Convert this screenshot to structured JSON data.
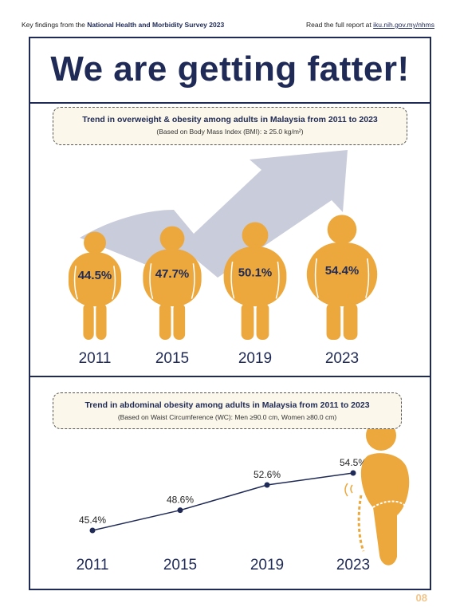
{
  "header": {
    "prefix": "Key findings from the",
    "survey_name": "National Health and Morbidity Survey 2023",
    "report_text": "Read the full report at",
    "report_link": "iku.nih.gov.my/nhms"
  },
  "title": "We are getting fatter!",
  "section1": {
    "heading": "Trend in overweight & obesity among adults in Malaysia from 2011 to 2023",
    "subheading": "(Based on Body Mass Index (BMI): ≥ 25.0 kg/m²)"
  },
  "section2": {
    "heading": "Trend in abdominal obesity among adults in Malaysia from 2011 to 2023",
    "subheading": "(Based on Waist Circumference (WC): Men ≥90.0 cm, Women ≥80.0 cm)"
  },
  "chart_data": [
    {
      "type": "bar",
      "categories": [
        "2011",
        "2015",
        "2019",
        "2023"
      ],
      "values": [
        44.5,
        47.7,
        50.1,
        54.4
      ],
      "labels": [
        "44.5%",
        "47.7%",
        "50.1%",
        "54.4%"
      ],
      "unit": "%"
    },
    {
      "type": "line",
      "x": [
        "2011",
        "2015",
        "2019",
        "2023"
      ],
      "values": [
        45.4,
        48.6,
        52.6,
        54.5
      ],
      "labels": [
        "45.4%",
        "48.6%",
        "52.6%",
        "54.5%"
      ],
      "unit": "%"
    }
  ],
  "colors": {
    "navy": "#1f2a56",
    "orange": "#eca83c",
    "arrow": "#c3c7d6",
    "box_bg": "#fbf7ea"
  },
  "page_number": "08"
}
